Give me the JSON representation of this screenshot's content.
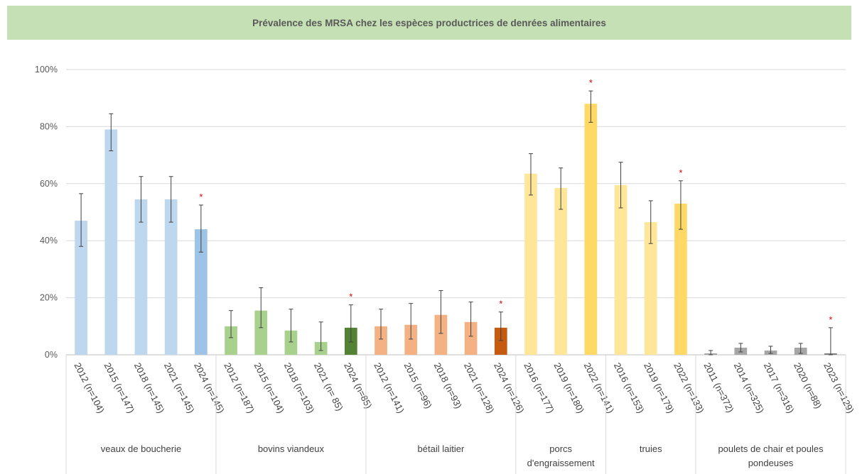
{
  "chart_data": {
    "type": "bar",
    "title": "Prévalence des MRSA chez les espèces productrices de denrées alimentaires",
    "ylim": [
      0,
      100
    ],
    "yticks": [
      "0%",
      "20%",
      "40%",
      "60%",
      "80%",
      "100%"
    ],
    "grid": true,
    "significance_marker": "*",
    "groups": [
      {
        "name": "veaux de boucherie",
        "bars": [
          {
            "label": "2012 (n=104)",
            "value": 47,
            "err_low": 38,
            "err_high": 56.5,
            "color": "#bdd7ee"
          },
          {
            "label": "2015 (n=147)",
            "value": 79,
            "err_low": 71.5,
            "err_high": 84.5,
            "color": "#bdd7ee"
          },
          {
            "label": "2018 (n=145)",
            "value": 54.5,
            "err_low": 46.5,
            "err_high": 62.5,
            "color": "#bdd7ee"
          },
          {
            "label": "2021  (n=145)",
            "value": 54.5,
            "err_low": 46.5,
            "err_high": 62.5,
            "color": "#bdd7ee"
          },
          {
            "label": "2024 (n=145)",
            "value": 44,
            "err_low": 36,
            "err_high": 52.5,
            "color": "#9dc3e6",
            "star": true
          }
        ]
      },
      {
        "name": "bovins viandeux",
        "bars": [
          {
            "label": "2012 (n=187)",
            "value": 10,
            "err_low": 6,
            "err_high": 15.5,
            "color": "#a9d18e"
          },
          {
            "label": "2015 (n=104)",
            "value": 15.5,
            "err_low": 9.5,
            "err_high": 23.5,
            "color": "#a9d18e"
          },
          {
            "label": "2018 (n=103)",
            "value": 8.5,
            "err_low": 4.5,
            "err_high": 16,
            "color": "#a9d18e"
          },
          {
            "label": "2021 (n= 85)",
            "value": 4.5,
            "err_low": 1.5,
            "err_high": 11.5,
            "color": "#a9d18e"
          },
          {
            "label": "2024 (n=85)",
            "value": 9.5,
            "err_low": 4.5,
            "err_high": 17.5,
            "color": "#548235",
            "star": true
          }
        ]
      },
      {
        "name": "bétail laitier",
        "bars": [
          {
            "label": "2012 (n=141)",
            "value": 10,
            "err_low": 5.5,
            "err_high": 16,
            "color": "#f4b183"
          },
          {
            "label": "2015 (n=96)",
            "value": 10.5,
            "err_low": 5.5,
            "err_high": 18,
            "color": "#f4b183"
          },
          {
            "label": "2018 (n=93)",
            "value": 14,
            "err_low": 7.5,
            "err_high": 22.5,
            "color": "#f4b183"
          },
          {
            "label": "2021 (n=128)",
            "value": 11.5,
            "err_low": 6.5,
            "err_high": 18.5,
            "color": "#f4b183"
          },
          {
            "label": "2024 (n=126)",
            "value": 9.5,
            "err_low": 5,
            "err_high": 15,
            "color": "#c55a11",
            "star": true
          }
        ]
      },
      {
        "name": "porcs d'engraissement",
        "bars": [
          {
            "label": "2016 (n=177)",
            "value": 63.5,
            "err_low": 56,
            "err_high": 70.5,
            "color": "#ffe699"
          },
          {
            "label": "2019 (n=180)",
            "value": 58.5,
            "err_low": 51,
            "err_high": 65.5,
            "color": "#ffe699"
          },
          {
            "label": "2022 (n=141)",
            "value": 88,
            "err_low": 81.5,
            "err_high": 92.5,
            "color": "#ffd966",
            "star": true
          }
        ]
      },
      {
        "name": "truies",
        "bars": [
          {
            "label": "2016 (n=153)",
            "value": 59.5,
            "err_low": 51.5,
            "err_high": 67.5,
            "color": "#ffe699"
          },
          {
            "label": "2019 (n=179)",
            "value": 46.5,
            "err_low": 39,
            "err_high": 54,
            "color": "#ffe699"
          },
          {
            "label": "2022 (n=133)",
            "value": 53,
            "err_low": 44,
            "err_high": 61,
            "color": "#ffd966",
            "star": true
          }
        ]
      },
      {
        "name": "poulets de chair et poules pondeuses",
        "bars": [
          {
            "label": "2011 (n=372)",
            "value": 0.5,
            "err_low": 0,
            "err_high": 1.5,
            "color": "#a6a6a6"
          },
          {
            "label": "2014 (n=325)",
            "value": 2.5,
            "err_low": 1,
            "err_high": 4,
            "color": "#a6a6a6"
          },
          {
            "label": "2017 (n=316)",
            "value": 1.5,
            "err_low": 0.5,
            "err_high": 3,
            "color": "#a6a6a6"
          },
          {
            "label": "2020 (n=88)",
            "value": 2.5,
            "err_low": 0.5,
            "err_high": 4,
            "color": "#a6a6a6"
          },
          {
            "label": "2023 (n=129)",
            "value": 0.5,
            "err_low": 0,
            "err_high": 9.5,
            "color": "#7f7f7f",
            "star": true
          }
        ]
      }
    ]
  }
}
